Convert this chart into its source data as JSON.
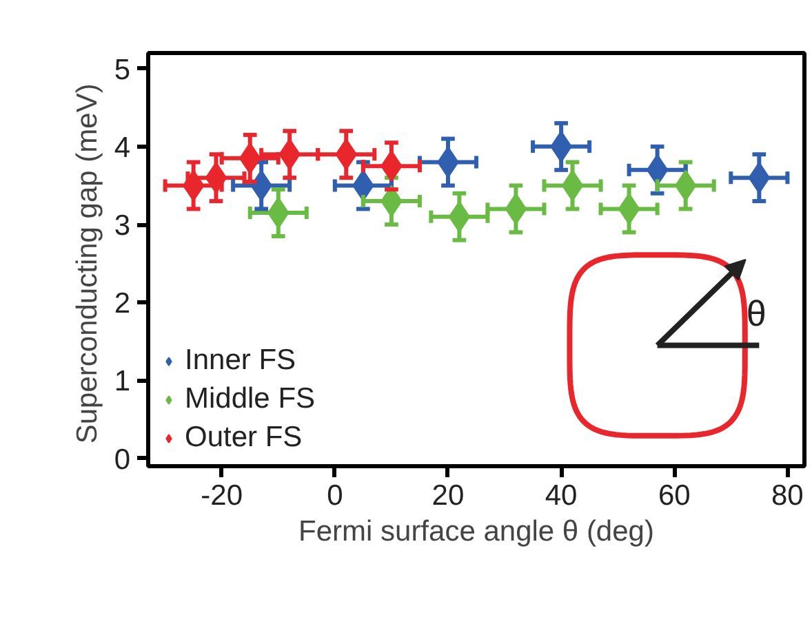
{
  "chart_data": {
    "type": "scatter",
    "xlabel": "Fermi surface angle θ (deg)",
    "ylabel": "Superconducting gap  (meV)",
    "xlim": [
      -33,
      83
    ],
    "xticks": [
      -20,
      0,
      20,
      40,
      60,
      80
    ],
    "ylim": [
      -0.1,
      5.2
    ],
    "yticks": [
      0,
      1,
      2,
      3,
      4,
      5
    ],
    "marker": "diamond",
    "legend": "bottom left",
    "grid": false,
    "annotations": [
      "θ"
    ],
    "series": [
      {
        "name": "Inner FS",
        "color": "#2f5fae",
        "x": [
          -13,
          5,
          20,
          40,
          57,
          75
        ],
        "values": [
          3.5,
          3.5,
          3.8,
          4.0,
          3.7,
          3.6
        ],
        "errors": [
          0.3,
          0.3,
          0.3,
          0.3,
          0.3,
          0.3
        ],
        "xerrors": [
          5,
          5,
          5,
          5,
          5,
          5
        ]
      },
      {
        "name": "Middle FS",
        "color": "#6abb44",
        "x": [
          -10,
          10,
          22,
          32,
          42,
          52,
          62
        ],
        "values": [
          3.15,
          3.3,
          3.1,
          3.2,
          3.5,
          3.2,
          3.5
        ],
        "errors": [
          0.3,
          0.3,
          0.3,
          0.3,
          0.3,
          0.3,
          0.3
        ],
        "xerrors": [
          5,
          5,
          5,
          5,
          5,
          5,
          5
        ]
      },
      {
        "name": "Outer FS",
        "color": "#e8262b",
        "x": [
          -25,
          -21,
          -15,
          -8,
          2,
          10
        ],
        "values": [
          3.5,
          3.6,
          3.85,
          3.9,
          3.9,
          3.75
        ],
        "errors": [
          0.3,
          0.3,
          0.3,
          0.3,
          0.3,
          0.3
        ],
        "xerrors": [
          5,
          5,
          5,
          5,
          5,
          5
        ]
      }
    ]
  }
}
